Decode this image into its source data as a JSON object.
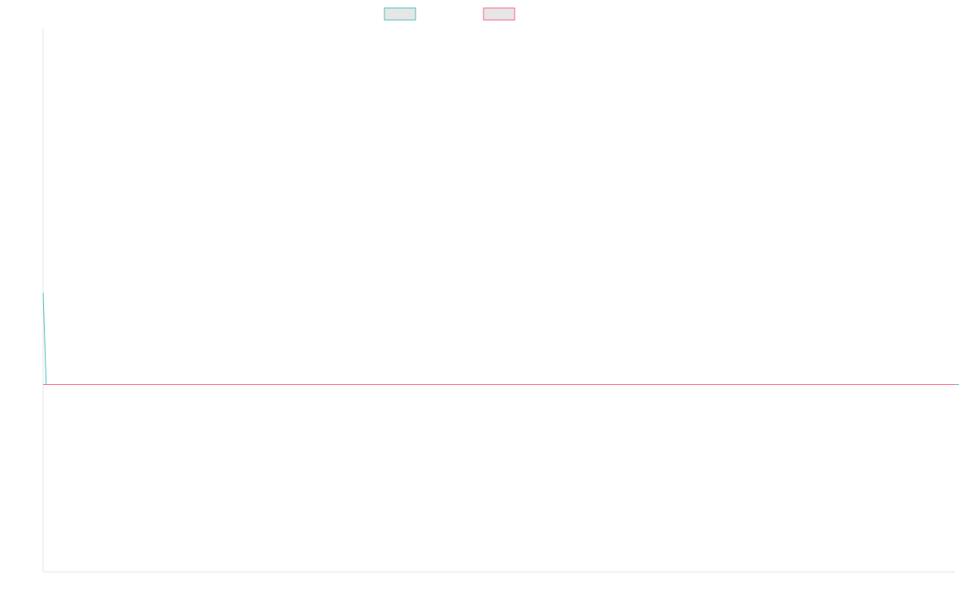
{
  "chart_data": {
    "type": "line",
    "title": "",
    "xlabel": "",
    "ylabel": "",
    "grid": false,
    "legend_position": "top-center",
    "xlim": [
      0,
      300
    ],
    "ylim": [
      -200,
      380
    ],
    "x_start": 0,
    "x_step": 1,
    "series": [
      {
        "color": "#4bc0c0",
        "fill": "#e6e6e6",
        "values": [
          98,
          0,
          0,
          0,
          0,
          0,
          0,
          0,
          0,
          0,
          0,
          0,
          0,
          0,
          0,
          0,
          0,
          0,
          0,
          0,
          0,
          0,
          0,
          0,
          0,
          0,
          0,
          0,
          0,
          0,
          0,
          0,
          0,
          0,
          0,
          0,
          0,
          0,
          0,
          0,
          0,
          0,
          0,
          0,
          0,
          0,
          0,
          0,
          0,
          0,
          0,
          0,
          0,
          0,
          0,
          0,
          0,
          0,
          0,
          0,
          0,
          0,
          0,
          0,
          0,
          0,
          0,
          0,
          0,
          0,
          0,
          0,
          0,
          0,
          0,
          0,
          0,
          0,
          0,
          0,
          0,
          0,
          0,
          0,
          0,
          0,
          0,
          0,
          0,
          0,
          0,
          0,
          0,
          0,
          0,
          0,
          0,
          0,
          0,
          0,
          0,
          0,
          0,
          0,
          0,
          0,
          0,
          0,
          0,
          0,
          0,
          0,
          0,
          0,
          0,
          0,
          0,
          0,
          0,
          0,
          0,
          0,
          0,
          0,
          0,
          0,
          0,
          0,
          0,
          0,
          0,
          0,
          0,
          0,
          0,
          0,
          0,
          0,
          0,
          0,
          0,
          0,
          0,
          0,
          0,
          0,
          0,
          0,
          0,
          0,
          0,
          0,
          0,
          0,
          0,
          0,
          0,
          0,
          0,
          0,
          0,
          0,
          0,
          0,
          0,
          0,
          0,
          0,
          0,
          0,
          0,
          0,
          0,
          0,
          0,
          0,
          0,
          0,
          0,
          0,
          0,
          0,
          0,
          0,
          0,
          0,
          0,
          0,
          0,
          0,
          0,
          0,
          0,
          0,
          0,
          0,
          0,
          0,
          0,
          0,
          0,
          0,
          0,
          0,
          0,
          0,
          0,
          0,
          0,
          0,
          0,
          0,
          0,
          0,
          0,
          0,
          0,
          0,
          0,
          0,
          0,
          0,
          0,
          0,
          0,
          0,
          0,
          0,
          0,
          0,
          0,
          0,
          0,
          0,
          0,
          0,
          0,
          0,
          0,
          0,
          0,
          0,
          0,
          0,
          0,
          0,
          0,
          0,
          0,
          0,
          0,
          0,
          0,
          0,
          0,
          0,
          0,
          0,
          0,
          0,
          0,
          0,
          0,
          0,
          0,
          0,
          0,
          0,
          0,
          0,
          0,
          0,
          0,
          0,
          0,
          0,
          0,
          0,
          0,
          0,
          0,
          0,
          0,
          0,
          0,
          0,
          0,
          0,
          0,
          0,
          0,
          0,
          0,
          0,
          0,
          0,
          0,
          0,
          0,
          0,
          0,
          0,
          0,
          0,
          0
        ]
      },
      {
        "color": "#ff6384",
        "fill": "#e6e6e6",
        "values": [
          0,
          0,
          0,
          0,
          0,
          0,
          0,
          0,
          0,
          0,
          0,
          0,
          0,
          0,
          0,
          0,
          0,
          0,
          0,
          0,
          0,
          0,
          0,
          0,
          0,
          0,
          0,
          0,
          0,
          0,
          0,
          0,
          0,
          0,
          0,
          0,
          0,
          0,
          0,
          0,
          0,
          0,
          0,
          0,
          0,
          0,
          0,
          0,
          0,
          0,
          0,
          0,
          0,
          0,
          0,
          0,
          0,
          0,
          0,
          0,
          0,
          0,
          0,
          0,
          0,
          0,
          0,
          0,
          0,
          0,
          0,
          0,
          0,
          0,
          0,
          0,
          0,
          0,
          0,
          0,
          0,
          0,
          0,
          0,
          0,
          0,
          0,
          0,
          0,
          0,
          0,
          0,
          0,
          0,
          0,
          0,
          0,
          0,
          0,
          0,
          0,
          0,
          0,
          0,
          0,
          0,
          0,
          0,
          0,
          0,
          0,
          0,
          0,
          0,
          0,
          0,
          0,
          0,
          0,
          0,
          0,
          0,
          0,
          0,
          0,
          0,
          0,
          0,
          0,
          0,
          0,
          0,
          0,
          0,
          0,
          0,
          0,
          0,
          0,
          0,
          0,
          0,
          0,
          0,
          0,
          0,
          0,
          0,
          0,
          0,
          0,
          0,
          0,
          0,
          0,
          0,
          0,
          0,
          0,
          0,
          0,
          0,
          0,
          0,
          0,
          0,
          0,
          0,
          0,
          0,
          0,
          0,
          0,
          0,
          0,
          0,
          0,
          0,
          0,
          0,
          0,
          0,
          0,
          0,
          0,
          0,
          0,
          0,
          0,
          0,
          0,
          0,
          0,
          0,
          0,
          0,
          0,
          0,
          0,
          0,
          0,
          0,
          0,
          0,
          0,
          0,
          0,
          0,
          0,
          0,
          0,
          0,
          0,
          0,
          0,
          0,
          0,
          0,
          0,
          0,
          0,
          0,
          0,
          0,
          0,
          0,
          0,
          0,
          0,
          0,
          0,
          0,
          0,
          0,
          0,
          0,
          0,
          0,
          0,
          0,
          0,
          0,
          0,
          0,
          0,
          0,
          0,
          0,
          0,
          0,
          0,
          0,
          0,
          0,
          0,
          0,
          0,
          0,
          0,
          0,
          0,
          0,
          0,
          0,
          0,
          0,
          0,
          0,
          0,
          0,
          0,
          0,
          0,
          0,
          0,
          0,
          0,
          0,
          0,
          0,
          0,
          0,
          0,
          0,
          0,
          0,
          0,
          0,
          0,
          0,
          0,
          0,
          0,
          0,
          0,
          0,
          0,
          0,
          0,
          0,
          0
        ]
      }
    ]
  }
}
